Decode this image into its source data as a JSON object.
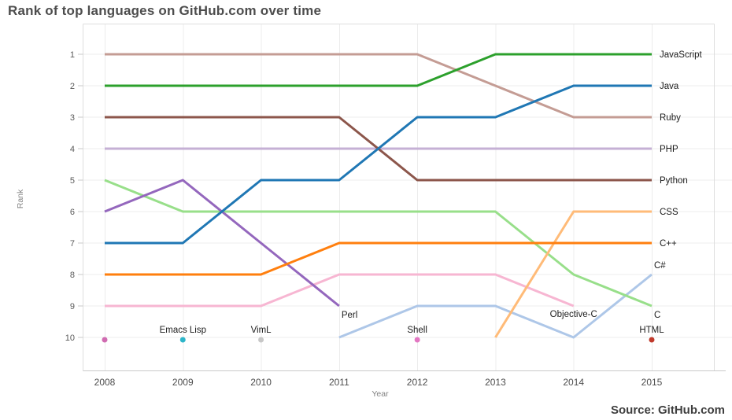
{
  "page": {
    "title": "Rank of top languages on GitHub.com over time",
    "source": "Source: GitHub.com"
  },
  "chart_data": {
    "type": "line",
    "title": "Rank of top languages on GitHub.com over time",
    "xlabel": "Year",
    "ylabel": "Rank",
    "x_ticks": [
      2008,
      2009,
      2010,
      2011,
      2012,
      2013,
      2014,
      2015
    ],
    "y_ticks": [
      1,
      2,
      3,
      4,
      5,
      6,
      7,
      8,
      9,
      10
    ],
    "y_inverted": true,
    "grid": true,
    "legend_position": "line-end-labels",
    "colors": {
      "grid": "#ececec",
      "panel_border": "#dedede",
      "axis_line": "#c9c9c9"
    },
    "series": [
      {
        "name": "PHP",
        "color": "#c5b0d5",
        "label_placement": "right",
        "data": [
          [
            2008,
            4
          ],
          [
            2009,
            4
          ],
          [
            2010,
            4
          ],
          [
            2011,
            4
          ],
          [
            2012,
            4
          ],
          [
            2013,
            4
          ],
          [
            2014,
            4
          ],
          [
            2015,
            4
          ]
        ]
      },
      {
        "name": "C#",
        "color": "#aec7e8",
        "label_placement": "above-end",
        "data": [
          [
            2011,
            10
          ],
          [
            2012,
            9
          ],
          [
            2013,
            9
          ],
          [
            2014,
            10
          ],
          [
            2015,
            8
          ]
        ]
      },
      {
        "name": "C",
        "color": "#98df8a",
        "label_placement": "below-end",
        "data": [
          [
            2008,
            5
          ],
          [
            2009,
            6
          ],
          [
            2010,
            6
          ],
          [
            2011,
            6
          ],
          [
            2012,
            6
          ],
          [
            2013,
            6
          ],
          [
            2014,
            8
          ],
          [
            2015,
            9
          ]
        ]
      },
      {
        "name": "Objective-C",
        "color": "#f7b6d2",
        "label_placement": "below-middle",
        "data": [
          [
            2008,
            9
          ],
          [
            2009,
            9
          ],
          [
            2010,
            9
          ],
          [
            2011,
            8
          ],
          [
            2012,
            8
          ],
          [
            2013,
            8
          ],
          [
            2014,
            9
          ]
        ]
      },
      {
        "name": "Perl",
        "color": "#9467bd",
        "label_placement": "below-end",
        "data": [
          [
            2008,
            6
          ],
          [
            2009,
            5
          ],
          [
            2010,
            7
          ],
          [
            2011,
            9
          ]
        ]
      },
      {
        "name": "Ruby",
        "color": "#c49c94",
        "label_placement": "right",
        "data": [
          [
            2008,
            1
          ],
          [
            2009,
            1
          ],
          [
            2010,
            1
          ],
          [
            2011,
            1
          ],
          [
            2012,
            1
          ],
          [
            2013,
            2
          ],
          [
            2014,
            3
          ],
          [
            2015,
            3
          ]
        ]
      },
      {
        "name": "Python",
        "color": "#8c564b",
        "label_placement": "right",
        "data": [
          [
            2008,
            3
          ],
          [
            2009,
            3
          ],
          [
            2010,
            3
          ],
          [
            2011,
            3
          ],
          [
            2012,
            5
          ],
          [
            2013,
            5
          ],
          [
            2014,
            5
          ],
          [
            2015,
            5
          ]
        ]
      },
      {
        "name": "CSS",
        "color": "#ffbb78",
        "label_placement": "right",
        "data": [
          [
            2013,
            10
          ],
          [
            2014,
            6
          ],
          [
            2015,
            6
          ]
        ]
      },
      {
        "name": "C++",
        "color": "#ff7f0e",
        "label_placement": "right",
        "data": [
          [
            2008,
            8
          ],
          [
            2009,
            8
          ],
          [
            2010,
            8
          ],
          [
            2011,
            7
          ],
          [
            2012,
            7
          ],
          [
            2013,
            7
          ],
          [
            2014,
            7
          ],
          [
            2015,
            7
          ]
        ]
      },
      {
        "name": "Java",
        "color": "#1f77b4",
        "label_placement": "right",
        "data": [
          [
            2008,
            7
          ],
          [
            2009,
            7
          ],
          [
            2010,
            5
          ],
          [
            2011,
            5
          ],
          [
            2012,
            3
          ],
          [
            2013,
            3
          ],
          [
            2014,
            2
          ],
          [
            2015,
            2
          ]
        ]
      },
      {
        "name": "JavaScript",
        "color": "#2ca02c",
        "label_placement": "right",
        "data": [
          [
            2008,
            2
          ],
          [
            2009,
            2
          ],
          [
            2010,
            2
          ],
          [
            2011,
            2
          ],
          [
            2012,
            2
          ],
          [
            2013,
            1
          ],
          [
            2014,
            1
          ],
          [
            2015,
            1
          ]
        ]
      }
    ],
    "points": [
      {
        "name": "",
        "color": "#d06bb1",
        "year": 2008,
        "rank": 10
      },
      {
        "name": "Emacs Lisp",
        "color": "#2cb5c9",
        "year": 2009,
        "rank": 10
      },
      {
        "name": "VimL",
        "color": "#c7c7c7",
        "year": 2010,
        "rank": 10
      },
      {
        "name": "Shell",
        "color": "#e377c2",
        "year": 2012,
        "rank": 10
      },
      {
        "name": "HTML",
        "color": "#c0392b",
        "year": 2015,
        "rank": 10
      }
    ]
  }
}
